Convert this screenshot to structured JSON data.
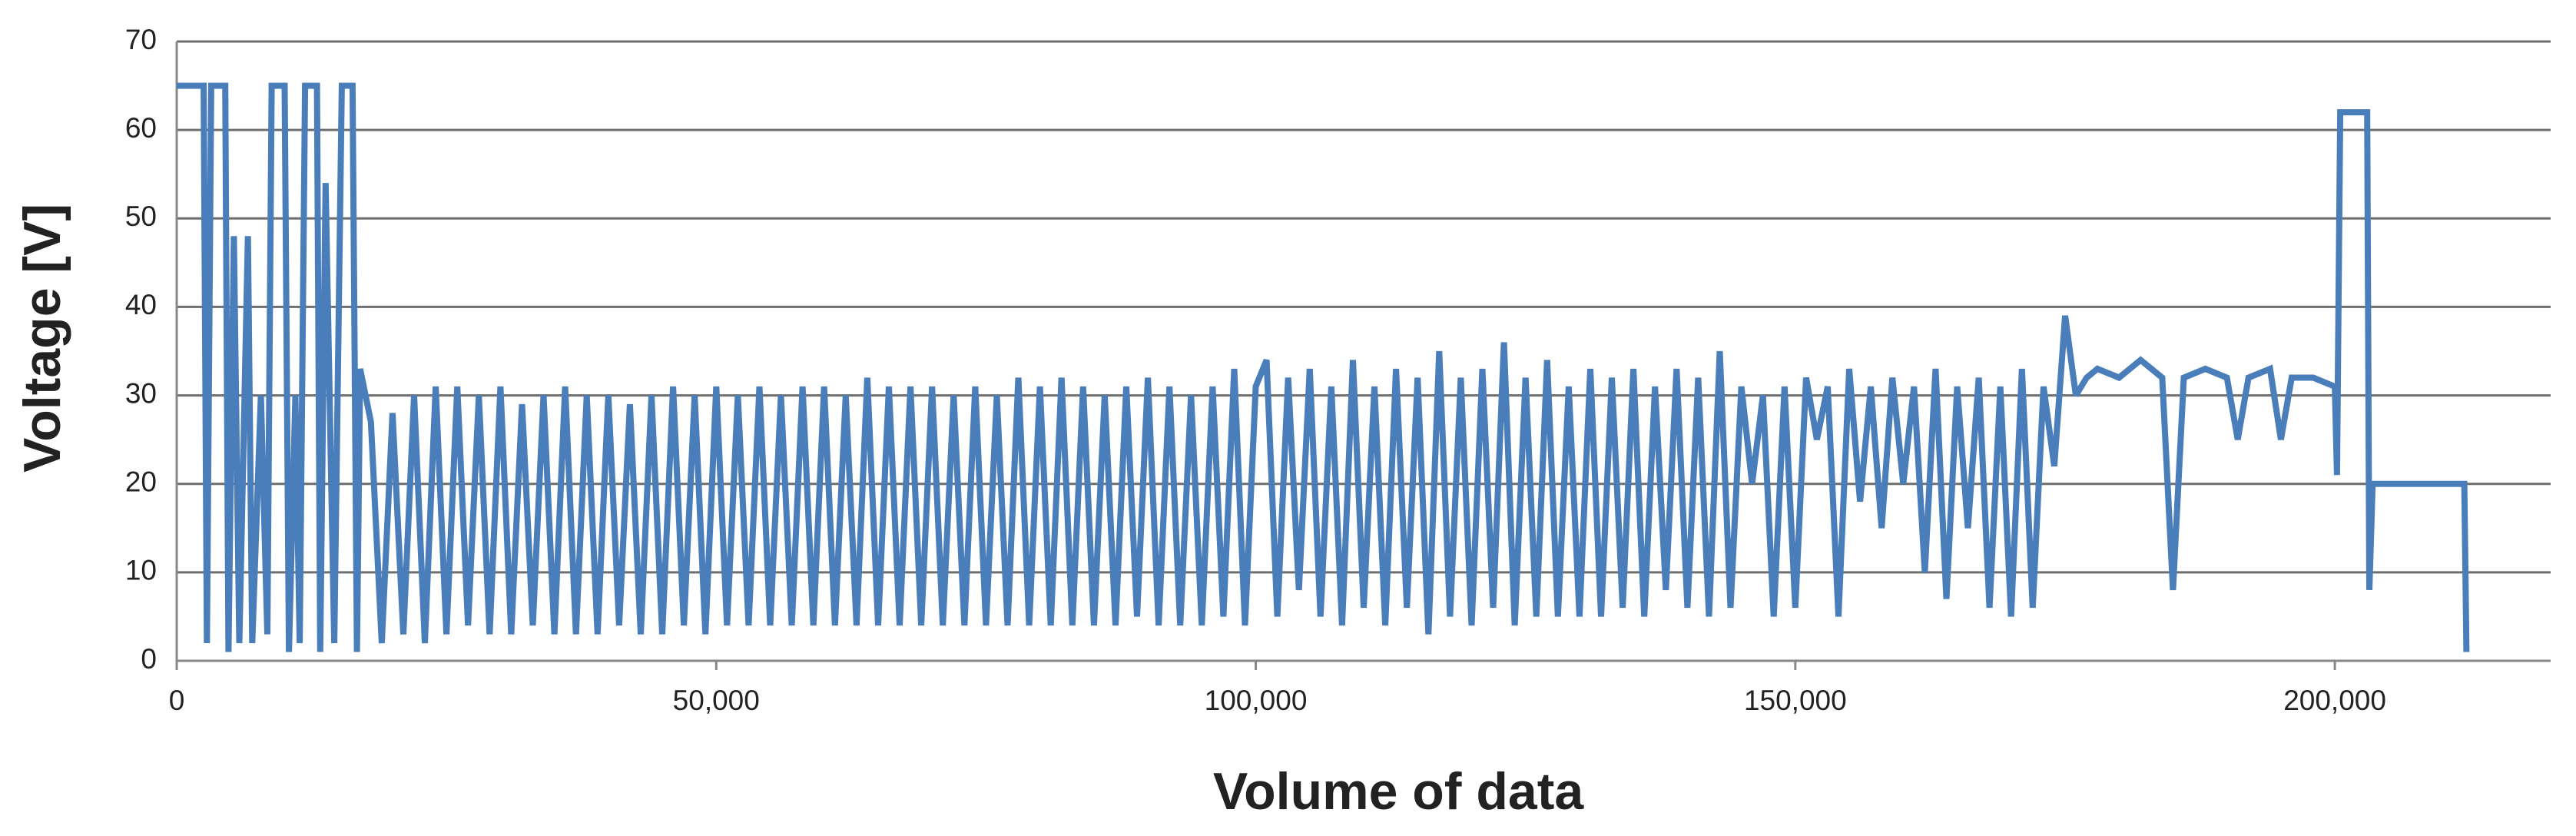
{
  "chart_data": {
    "type": "line",
    "x_label": "Volume of data",
    "y_label": "Voltage [V]",
    "color": "#4a7ebb",
    "grid": true,
    "xlim": [
      0,
      220000
    ],
    "ylim": [
      0,
      70
    ],
    "xticks": [
      0,
      {
        "value": 50000,
        "label": "50,000"
      },
      {
        "value": 100000,
        "label": "100,000"
      },
      {
        "value": 150000,
        "label": "150,000"
      },
      {
        "value": 200000,
        "label": "200,000"
      }
    ],
    "yticks": [
      0,
      10,
      20,
      30,
      40,
      50,
      60,
      70
    ],
    "x": [
      0,
      2500,
      2800,
      3200,
      4500,
      4800,
      5300,
      5800,
      6600,
      7000,
      7800,
      8400,
      8800,
      10000,
      10400,
      11000,
      11400,
      11900,
      13000,
      13300,
      13800,
      14600,
      15300,
      16300,
      16700,
      17000,
      18000,
      19000,
      20000,
      21000,
      22000,
      23000,
      24000,
      25000,
      26000,
      27000,
      28000,
      29000,
      30000,
      31000,
      32000,
      33000,
      34000,
      35000,
      36000,
      37000,
      38000,
      39000,
      40000,
      41000,
      42000,
      43000,
      44000,
      45000,
      46000,
      47000,
      48000,
      49000,
      50000,
      51000,
      52000,
      53000,
      54000,
      55000,
      56000,
      57000,
      58000,
      59000,
      60000,
      61000,
      62000,
      63000,
      64000,
      65000,
      66000,
      67000,
      68000,
      69000,
      70000,
      71000,
      72000,
      73000,
      74000,
      75000,
      76000,
      77000,
      78000,
      79000,
      80000,
      81000,
      82000,
      83000,
      84000,
      85000,
      86000,
      87000,
      88000,
      89000,
      90000,
      91000,
      92000,
      93000,
      94000,
      95000,
      96000,
      97000,
      98000,
      99000,
      100000,
      101000,
      102000,
      103000,
      104000,
      105000,
      106000,
      107000,
      108000,
      109000,
      110000,
      111000,
      112000,
      113000,
      114000,
      115000,
      116000,
      117000,
      118000,
      119000,
      120000,
      121000,
      122000,
      123000,
      124000,
      125000,
      126000,
      127000,
      128000,
      129000,
      130000,
      131000,
      132000,
      133000,
      134000,
      135000,
      136000,
      137000,
      138000,
      139000,
      140000,
      141000,
      142000,
      143000,
      144000,
      145000,
      146000,
      147000,
      148000,
      149000,
      150000,
      151000,
      152000,
      153000,
      154000,
      155000,
      156000,
      157000,
      158000,
      159000,
      160000,
      161000,
      162000,
      163000,
      164000,
      165000,
      166000,
      167000,
      168000,
      169000,
      170000,
      171000,
      172000,
      173000,
      174000,
      175000,
      176000,
      177000,
      178000,
      180000,
      182000,
      184000,
      185000,
      186000,
      188000,
      190000,
      191000,
      192000,
      194000,
      195000,
      196000,
      198000,
      200000,
      200200,
      200500,
      203000,
      203200,
      203500,
      212000,
      212200
    ],
    "values": [
      65,
      65,
      2,
      65,
      65,
      1,
      48,
      2,
      48,
      2,
      30,
      3,
      65,
      65,
      1,
      30,
      2,
      65,
      65,
      1,
      54,
      2,
      65,
      65,
      1,
      33,
      27,
      2,
      28,
      3,
      30,
      2,
      31,
      3,
      31,
      4,
      30,
      3,
      31,
      3,
      29,
      4,
      30,
      3,
      31,
      3,
      30,
      3,
      30,
      4,
      29,
      3,
      30,
      3,
      31,
      4,
      30,
      3,
      31,
      4,
      30,
      4,
      31,
      4,
      30,
      4,
      31,
      4,
      31,
      4,
      30,
      4,
      32,
      4,
      31,
      4,
      31,
      4,
      31,
      4,
      30,
      4,
      31,
      4,
      30,
      4,
      32,
      4,
      31,
      4,
      32,
      4,
      31,
      4,
      30,
      4,
      31,
      5,
      32,
      4,
      31,
      4,
      30,
      4,
      31,
      5,
      33,
      4,
      31,
      34,
      5,
      32,
      8,
      33,
      5,
      31,
      4,
      34,
      6,
      31,
      4,
      33,
      6,
      32,
      3,
      35,
      5,
      32,
      4,
      33,
      6,
      36,
      4,
      32,
      5,
      34,
      5,
      31,
      5,
      33,
      5,
      32,
      6,
      33,
      5,
      31,
      8,
      33,
      6,
      32,
      5,
      35,
      6,
      31,
      20,
      30,
      5,
      31,
      6,
      32,
      25,
      31,
      5,
      33,
      18,
      31,
      15,
      32,
      20,
      31,
      10,
      33,
      7,
      31,
      15,
      32,
      6,
      31,
      5,
      33,
      6,
      31,
      22,
      39,
      30,
      32,
      33,
      32,
      34,
      32,
      8,
      32,
      33,
      32,
      25,
      32,
      33,
      25,
      32,
      32,
      31,
      21,
      62,
      62,
      8,
      20,
      20,
      1
    ]
  }
}
